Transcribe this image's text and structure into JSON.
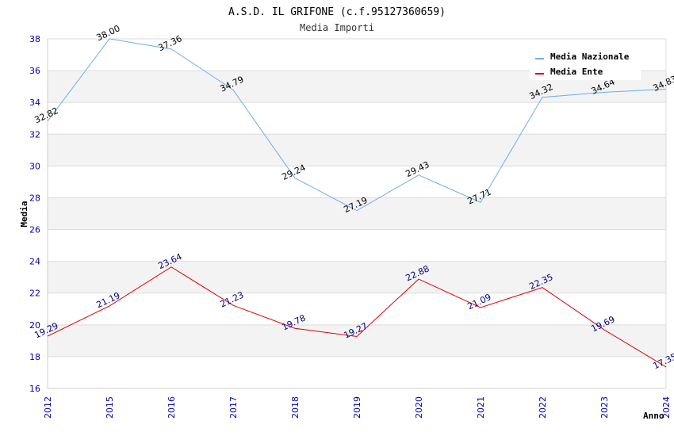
{
  "chart_data": {
    "type": "line",
    "title": "A.S.D. IL GRIFONE (c.f.95127360659)",
    "subtitle": "Media Importi",
    "xlabel": "Anno",
    "ylabel": "Media",
    "categories": [
      "2012",
      "2015",
      "2016",
      "2017",
      "2018",
      "2019",
      "2020",
      "2021",
      "2022",
      "2023",
      "2024"
    ],
    "ylim": [
      16,
      38
    ],
    "yticks": [
      "16",
      "18",
      "20",
      "22",
      "24",
      "26",
      "28",
      "30",
      "32",
      "34",
      "36",
      "38"
    ],
    "grid": true,
    "legend_position": "top-right",
    "series": [
      {
        "name": "Media Nazionale",
        "color": "#6aaeea",
        "label_color": "#000000",
        "values": [
          32.82,
          38.0,
          37.36,
          34.79,
          29.24,
          27.19,
          29.43,
          27.71,
          34.32,
          34.64,
          34.83
        ],
        "labels": [
          "32.82",
          "38.00",
          "37.36",
          "34.79",
          "29.24",
          "27.19",
          "29.43",
          "27.71",
          "34.32",
          "34.64",
          "34.83"
        ]
      },
      {
        "name": "Media Ente",
        "color": "#e00000",
        "label_color": "#000080",
        "values": [
          19.29,
          21.19,
          23.64,
          21.23,
          19.78,
          19.27,
          22.88,
          21.09,
          22.35,
          19.69,
          17.35
        ],
        "labels": [
          "19.29",
          "21.19",
          "23.64",
          "21.23",
          "19.78",
          "19.27",
          "22.88",
          "21.09",
          "22.35",
          "19.69",
          "17.35"
        ]
      }
    ]
  }
}
